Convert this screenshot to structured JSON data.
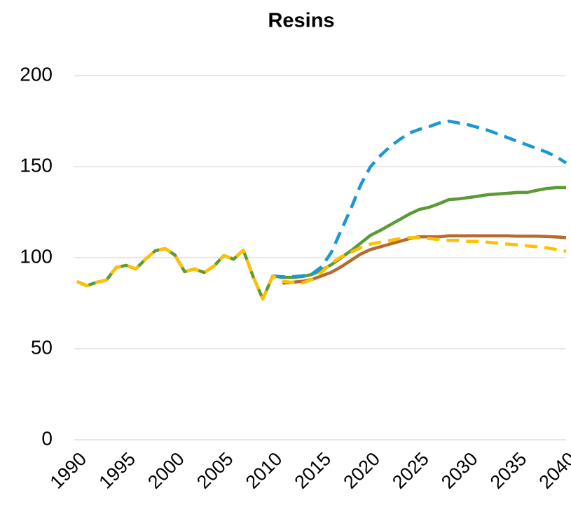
{
  "chart_data": {
    "type": "line",
    "title": "Resins",
    "x": [
      1990,
      1991,
      1992,
      1993,
      1994,
      1995,
      1996,
      1997,
      1998,
      1999,
      2000,
      2001,
      2002,
      2003,
      2004,
      2005,
      2006,
      2007,
      2008,
      2009,
      2010,
      2011,
      2012,
      2013,
      2014,
      2015,
      2016,
      2017,
      2018,
      2019,
      2020,
      2021,
      2022,
      2023,
      2024,
      2025,
      2026,
      2027,
      2028,
      2029,
      2030,
      2031,
      2032,
      2033,
      2034,
      2035,
      2036,
      2037,
      2038,
      2039,
      2040
    ],
    "xlim": [
      1990,
      2040
    ],
    "xticks": [
      1990,
      1995,
      2000,
      2005,
      2010,
      2015,
      2020,
      2025,
      2030,
      2035,
      2040
    ],
    "ylim": [
      0,
      200
    ],
    "yticks": [
      0,
      50,
      100,
      150,
      200
    ],
    "grid": true,
    "series": [
      {
        "color": "#5b9b34",
        "style": "solid",
        "values": [
          86.9,
          84.6,
          86.5,
          87.7,
          94.6,
          95.8,
          93.8,
          99.2,
          103.8,
          105,
          101.5,
          92.3,
          93.8,
          91.9,
          95.4,
          101.2,
          99.2,
          104.2,
          89.6,
          77.3,
          90,
          89.2,
          89.2,
          89.6,
          90.8,
          93.1,
          96.2,
          100,
          103.8,
          108,
          112.3,
          115,
          118,
          121,
          124,
          126.5,
          127.7,
          129.6,
          131.9,
          132.3,
          133,
          133.8,
          134.6,
          135,
          135.4,
          135.8,
          135.8,
          137,
          138,
          138.5,
          138.5
        ]
      },
      {
        "color": "#1a98d6",
        "style": "dashed",
        "values": [
          null,
          null,
          null,
          null,
          null,
          null,
          null,
          null,
          null,
          null,
          null,
          null,
          null,
          null,
          null,
          null,
          null,
          null,
          null,
          null,
          90,
          89.5,
          89.5,
          90,
          91,
          95,
          103,
          115,
          127,
          140,
          150,
          156,
          161,
          165,
          168.5,
          170.5,
          172,
          174,
          175,
          174,
          173,
          171.5,
          170,
          168,
          166,
          164,
          162,
          160,
          158,
          155.5,
          152
        ]
      },
      {
        "color": "#b8692b",
        "style": "solid",
        "values": [
          null,
          null,
          null,
          null,
          null,
          null,
          null,
          null,
          null,
          null,
          null,
          null,
          null,
          null,
          null,
          null,
          null,
          null,
          null,
          null,
          null,
          86,
          86.5,
          87,
          88,
          90,
          92,
          95,
          98.5,
          102,
          104.5,
          106,
          107.5,
          109,
          110.5,
          111.5,
          111.5,
          111.5,
          112,
          112,
          112,
          112,
          112,
          112,
          112,
          111.8,
          111.8,
          111.8,
          111.6,
          111.4,
          111
        ]
      },
      {
        "color": "#ffc000",
        "style": "dashed",
        "values": [
          86.9,
          84.6,
          86.5,
          87.7,
          94.6,
          95.8,
          93.8,
          99.2,
          103.8,
          105,
          101.5,
          92.3,
          93.8,
          91.9,
          95.4,
          101.2,
          99.2,
          104.2,
          89.6,
          77.3,
          90,
          87,
          86.5,
          86,
          88,
          92,
          97,
          100.5,
          103,
          105.5,
          107.5,
          108.5,
          109.5,
          110.5,
          111,
          111,
          110.5,
          110,
          109.5,
          109.5,
          109,
          109,
          108.5,
          108,
          107.5,
          107,
          106.5,
          106,
          105.5,
          104.5,
          103.5
        ]
      }
    ]
  }
}
